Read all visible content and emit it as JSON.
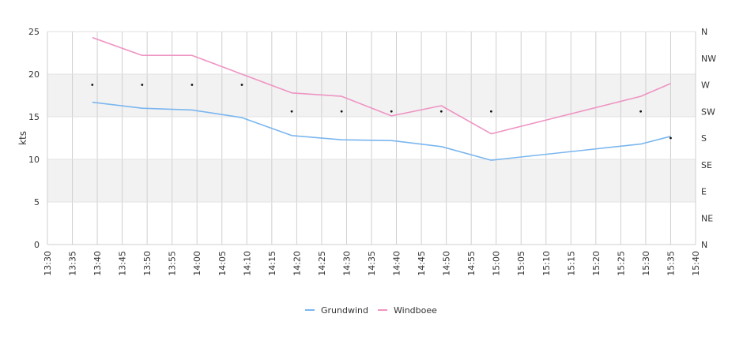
{
  "chart_data": {
    "type": "line",
    "ylabel": "kts",
    "ylim": [
      0,
      25
    ],
    "y_ticks": [
      0,
      5,
      10,
      15,
      20,
      25
    ],
    "x_ticks": [
      "13:30",
      "13:35",
      "13:40",
      "13:45",
      "13:50",
      "13:55",
      "14:00",
      "14:05",
      "14:10",
      "14:15",
      "14:20",
      "14:25",
      "14:30",
      "14:35",
      "14:40",
      "14:45",
      "14:50",
      "14:55",
      "15:00",
      "15:05",
      "15:10",
      "15:15",
      "15:20",
      "15:25",
      "15:30",
      "15:35",
      "15:40"
    ],
    "direction_ticks": [
      "N",
      "NE",
      "E",
      "SE",
      "S",
      "SW",
      "W",
      "NW",
      "N"
    ],
    "grid": true,
    "legend_position": "bottom",
    "series": [
      {
        "name": "Grundwind",
        "color": "#7ab6ef",
        "points": [
          [
            "13:39",
            16.7
          ],
          [
            "13:49",
            16.0
          ],
          [
            "13:59",
            15.8
          ],
          [
            "14:09",
            14.9
          ],
          [
            "14:19",
            12.8
          ],
          [
            "14:29",
            12.3
          ],
          [
            "14:39",
            12.2
          ],
          [
            "14:49",
            11.5
          ],
          [
            "14:59",
            9.9
          ],
          [
            "15:29",
            11.8
          ],
          [
            "15:35",
            12.7
          ]
        ]
      },
      {
        "name": "Windboee",
        "color": "#ee94c3",
        "points": [
          [
            "13:39",
            24.3
          ],
          [
            "13:49",
            22.2
          ],
          [
            "13:59",
            22.2
          ],
          [
            "14:09",
            20.0
          ],
          [
            "14:19",
            17.8
          ],
          [
            "14:29",
            17.4
          ],
          [
            "14:39",
            15.1
          ],
          [
            "14:49",
            16.3
          ],
          [
            "14:59",
            13.0
          ],
          [
            "15:29",
            17.4
          ],
          [
            "15:35",
            18.9
          ]
        ]
      }
    ],
    "direction_points": [
      [
        "13:39",
        "W"
      ],
      [
        "13:49",
        "W"
      ],
      [
        "13:59",
        "W"
      ],
      [
        "14:09",
        "W"
      ],
      [
        "14:19",
        "SW"
      ],
      [
        "14:29",
        "SW"
      ],
      [
        "14:39",
        "SW"
      ],
      [
        "14:49",
        "SW"
      ],
      [
        "14:59",
        "SW"
      ],
      [
        "15:29",
        "SW"
      ],
      [
        "15:35",
        "S"
      ]
    ]
  }
}
